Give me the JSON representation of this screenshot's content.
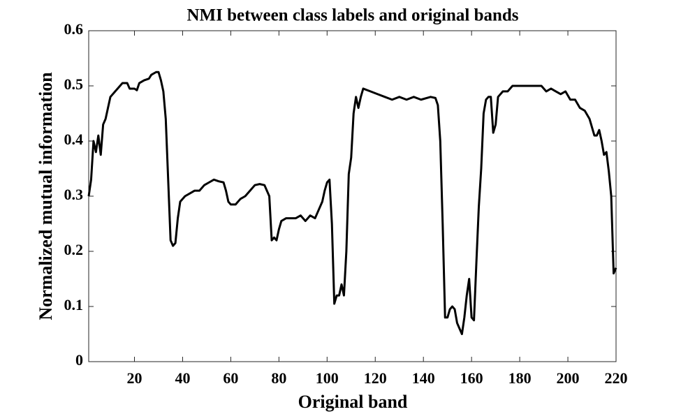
{
  "chart_data": {
    "type": "line",
    "title": "NMI between class labels and original bands",
    "x_label": "Original band",
    "y_label": "Normalized mutual information",
    "xlim": [
      1,
      220
    ],
    "ylim": [
      0,
      0.6
    ],
    "xticks": [
      20,
      40,
      60,
      80,
      100,
      120,
      140,
      160,
      180,
      200,
      220
    ],
    "yticks": [
      0,
      0.1,
      0.2,
      0.3,
      0.4,
      0.5,
      0.6
    ],
    "grid": false,
    "series": [
      {
        "name": "NMI",
        "color": "#000000",
        "x": [
          1,
          2,
          3,
          4,
          5,
          6,
          7,
          8,
          9,
          10,
          12,
          14,
          15,
          17,
          18,
          20,
          21,
          22,
          24,
          26,
          27,
          29,
          30,
          31,
          32,
          33,
          34,
          35,
          36,
          37,
          38,
          39,
          41,
          43,
          45,
          47,
          49,
          51,
          53,
          55,
          57,
          58,
          59,
          60,
          62,
          64,
          66,
          68,
          70,
          72,
          74,
          75,
          76,
          77,
          78,
          79,
          80,
          81,
          83,
          85,
          87,
          89,
          91,
          93,
          95,
          96,
          98,
          99,
          100,
          101,
          102,
          103,
          104,
          105,
          106,
          107,
          108,
          109,
          110,
          111,
          112,
          113,
          114,
          115,
          118,
          121,
          124,
          127,
          130,
          133,
          136,
          139,
          143,
          145,
          146,
          147,
          148,
          149,
          150,
          151,
          152,
          153,
          154,
          155,
          156,
          157,
          158,
          159,
          160,
          161,
          162,
          163,
          164,
          165,
          166,
          167,
          168,
          169,
          170,
          171,
          173,
          175,
          177,
          179,
          181,
          183,
          185,
          187,
          189,
          191,
          193,
          195,
          197,
          199,
          201,
          203,
          205,
          207,
          209,
          211,
          212,
          213,
          214,
          215,
          216,
          217,
          218,
          219,
          220
        ],
        "values": [
          0.3,
          0.33,
          0.4,
          0.38,
          0.41,
          0.375,
          0.43,
          0.44,
          0.46,
          0.48,
          0.49,
          0.5,
          0.505,
          0.505,
          0.495,
          0.495,
          0.492,
          0.505,
          0.51,
          0.513,
          0.52,
          0.525,
          0.525,
          0.51,
          0.49,
          0.44,
          0.33,
          0.22,
          0.21,
          0.215,
          0.26,
          0.29,
          0.3,
          0.305,
          0.31,
          0.31,
          0.32,
          0.325,
          0.33,
          0.327,
          0.325,
          0.31,
          0.29,
          0.285,
          0.285,
          0.295,
          0.3,
          0.31,
          0.32,
          0.322,
          0.32,
          0.31,
          0.3,
          0.22,
          0.225,
          0.22,
          0.24,
          0.255,
          0.26,
          0.26,
          0.26,
          0.265,
          0.255,
          0.265,
          0.26,
          0.27,
          0.29,
          0.31,
          0.325,
          0.33,
          0.25,
          0.105,
          0.12,
          0.12,
          0.14,
          0.12,
          0.2,
          0.34,
          0.37,
          0.45,
          0.48,
          0.46,
          0.48,
          0.495,
          0.49,
          0.485,
          0.48,
          0.475,
          0.48,
          0.475,
          0.48,
          0.475,
          0.48,
          0.478,
          0.465,
          0.4,
          0.25,
          0.08,
          0.08,
          0.095,
          0.1,
          0.095,
          0.07,
          0.06,
          0.05,
          0.08,
          0.12,
          0.15,
          0.08,
          0.075,
          0.18,
          0.28,
          0.35,
          0.45,
          0.475,
          0.48,
          0.48,
          0.415,
          0.43,
          0.48,
          0.49,
          0.49,
          0.5,
          0.5,
          0.5,
          0.5,
          0.5,
          0.5,
          0.5,
          0.49,
          0.495,
          0.49,
          0.485,
          0.49,
          0.475,
          0.475,
          0.46,
          0.455,
          0.44,
          0.41,
          0.41,
          0.42,
          0.4,
          0.375,
          0.38,
          0.345,
          0.3,
          0.16,
          0.17
        ]
      }
    ]
  }
}
